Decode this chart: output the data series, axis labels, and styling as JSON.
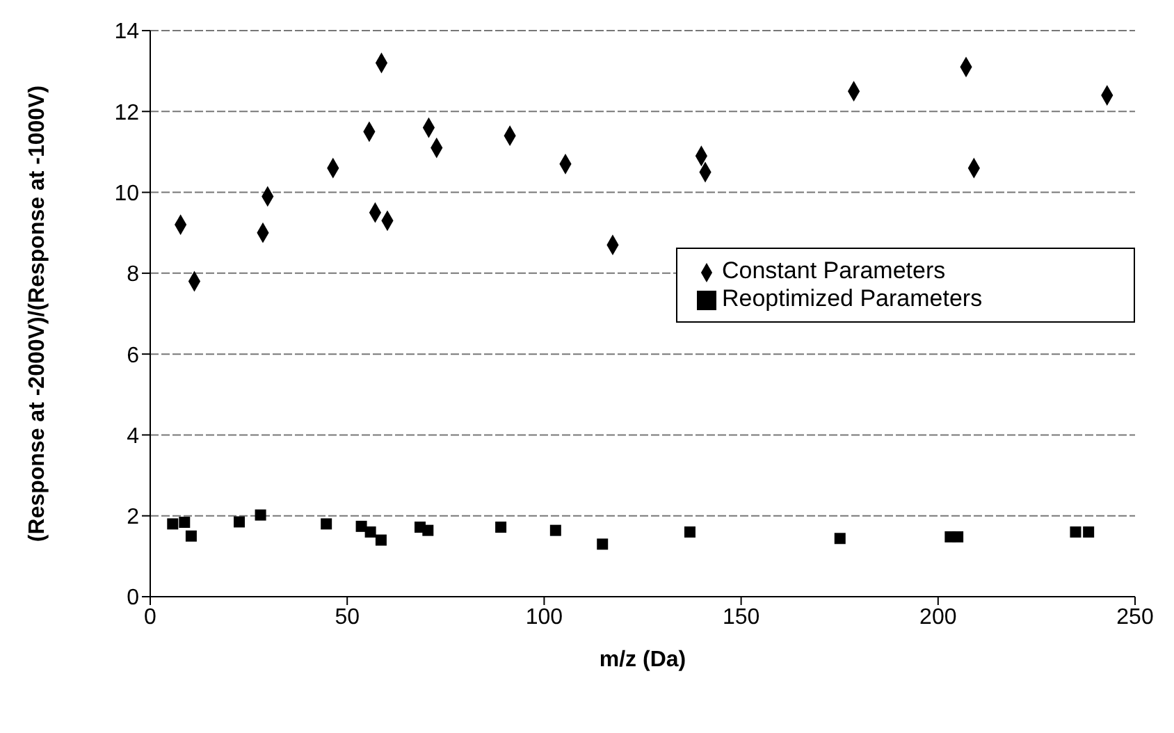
{
  "chart_data": {
    "type": "scatter",
    "xlabel": "m/z (Da)",
    "ylabel": "(Response at -2000V)/(Response at -1000V)",
    "xlim": [
      0,
      250
    ],
    "xticks": [
      0,
      50,
      100,
      150,
      200,
      250
    ],
    "ylim": [
      0,
      14
    ],
    "yticks": [
      0,
      2,
      4,
      6,
      8,
      10,
      12,
      14
    ],
    "grid": "y",
    "legend": "right",
    "series": [
      {
        "name": "Constant Parameters",
        "color": "#000000",
        "marker": "diamond",
        "x": [
          7.7,
          11.2,
          28.6,
          29.8,
          46.4,
          55.6,
          58.7,
          57.1,
          60.2,
          70.7,
          72.7,
          91.3,
          105.4,
          117.4,
          139.9,
          140.9,
          178.6,
          207.1,
          209.1,
          242.9
        ],
        "values": [
          9.2,
          7.8,
          9.0,
          9.9,
          10.6,
          11.5,
          13.2,
          9.5,
          9.3,
          11.6,
          11.1,
          11.4,
          10.7,
          8.7,
          10.9,
          10.5,
          12.5,
          13.1,
          10.6,
          12.4
        ]
      },
      {
        "name": "Reoptimized Parameters",
        "color": "#000000",
        "marker": "square",
        "x": [
          5.7,
          8.7,
          10.4,
          22.6,
          28.0,
          44.7,
          53.6,
          55.9,
          58.6,
          68.5,
          70.5,
          89.0,
          102.9,
          114.8,
          137.0,
          175.1,
          203.1,
          205.0,
          234.9,
          238.2
        ],
        "values": [
          1.8,
          1.84,
          1.5,
          1.85,
          2.02,
          1.8,
          1.74,
          1.6,
          1.4,
          1.72,
          1.64,
          1.72,
          1.64,
          1.3,
          1.6,
          1.44,
          1.48,
          1.48,
          1.6,
          1.6
        ]
      }
    ]
  }
}
